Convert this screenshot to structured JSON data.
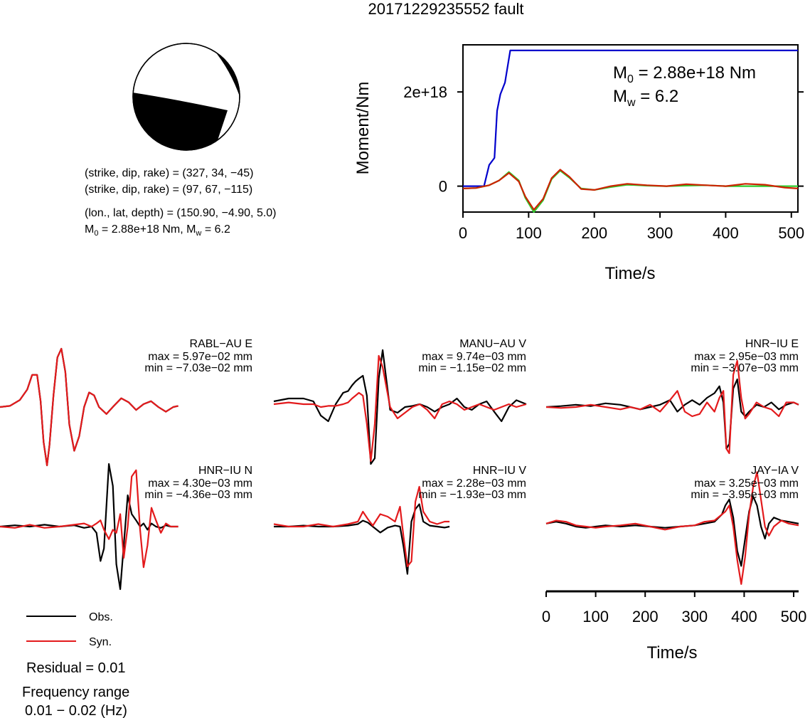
{
  "title": "20171229235552 fault",
  "mechanism": {
    "plane1": "(strike, dip, rake) = (327, 34, −45)",
    "plane2": "(strike, dip, rake) = (97, 67, −115)",
    "location": "(lon., lat, depth) = (150.90, −4.90, 5.0)",
    "moment_prefix": "M",
    "moment_sub": "0",
    "moment_mid": " = 2.88e+18 Nm, M",
    "mw_sub": "w",
    "mw_value": " = 6.2"
  },
  "legend": {
    "obs_label": "Obs.",
    "syn_label": "Syn.",
    "residual": "Residual = 0.01",
    "freq_title": "Frequency range",
    "freq_value": "0.01 − 0.02 (Hz)"
  },
  "colors": {
    "observed": "#000000",
    "synthetic": "#e31a1c",
    "moment": "#0000cc",
    "stf_green": "#2ecc2e",
    "stf_red": "#cc2200"
  },
  "chart_data": [
    {
      "type": "line",
      "name": "moment-rate",
      "xlabel": "Time/s",
      "ylabel": "Moment/Nm",
      "xlim": [
        0,
        510
      ],
      "ylim": [
        -5.5e+17,
        3e+18
      ],
      "xticks": [
        0,
        100,
        200,
        300,
        400,
        500
      ],
      "xtick_labels": [
        "0",
        "100",
        "200",
        "300",
        "400",
        "500"
      ],
      "yticks": [
        0,
        2e+18
      ],
      "ytick_labels": [
        "0",
        "2e+18"
      ],
      "annotation_m0": "M",
      "annotation_m0_sub": "0",
      "annotation_m0_value": " = 2.88e+18 Nm",
      "annotation_mw": "M",
      "annotation_mw_sub": "w",
      "annotation_mw_value": " = 6.2",
      "series": [
        {
          "id": "cumulative",
          "x": [
            0,
            32,
            40,
            48,
            52,
            57,
            64,
            72,
            510
          ],
          "y": [
            0,
            0,
            4.5e+17,
            6e+17,
            1.6e+18,
            1.95e+18,
            2.2e+18,
            2.88e+18,
            2.88e+18
          ]
        },
        {
          "id": "stf-green",
          "x": [
            0,
            20,
            40,
            55,
            70,
            85,
            95,
            108,
            122,
            135,
            148,
            162,
            180,
            200,
            225,
            250,
            280,
            310,
            340,
            370,
            400,
            430,
            460,
            510
          ],
          "y": [
            -5e+16,
            -4e+16,
            2e+16,
            1.2e+17,
            3e+17,
            1.2e+17,
            -2.5e+17,
            -5.5e+17,
            -3e+17,
            1.5e+17,
            3.3e+17,
            1.8e+17,
            -5e+16,
            -8e+16,
            -2e+16,
            3e+16,
            1e+16,
            0.0,
            1e+16,
            2e+16,
            0.0,
            0.0,
            0.0,
            0.0
          ]
        },
        {
          "id": "stf-red",
          "x": [
            0,
            20,
            40,
            55,
            70,
            85,
            95,
            108,
            122,
            135,
            148,
            162,
            180,
            200,
            225,
            250,
            280,
            310,
            340,
            370,
            400,
            430,
            460,
            490,
            510
          ],
          "y": [
            -5e+16,
            -4e+16,
            2e+16,
            1.2e+17,
            2.8e+17,
            1e+17,
            -2.2e+17,
            -5e+17,
            -2.7e+17,
            1.7e+17,
            3.5e+17,
            2e+17,
            -6e+16,
            -8e+16,
            0.0,
            5e+16,
            2e+16,
            0.0,
            4e+16,
            2e+16,
            0.0,
            5e+16,
            3e+16,
            -3e+16,
            -5e+16
          ]
        }
      ]
    },
    {
      "type": "line",
      "name": "waveforms",
      "xlabel": "Time/s",
      "xlim": [
        0,
        510
      ],
      "xticks": [
        0,
        100,
        200,
        300,
        400,
        500
      ],
      "xtick_labels": [
        "0",
        "100",
        "200",
        "300",
        "400",
        "500"
      ],
      "series_names": [
        "Obs.",
        "Syn."
      ],
      "traces": [
        {
          "station": "RABL−AU E",
          "max_label": "max = 5.97e−02 mm",
          "min_label": "min = −7.03e−02 mm",
          "x": [
            0,
            20,
            40,
            55,
            65,
            75,
            82,
            88,
            95,
            100,
            108,
            116,
            124,
            132,
            140,
            150,
            160,
            170,
            180,
            190,
            200,
            215,
            230,
            245,
            260,
            275,
            290,
            305,
            320,
            335,
            350,
            360
          ],
          "obs": [
            0,
            0.02,
            0.12,
            0.3,
            0.55,
            0.55,
            0.1,
            -0.6,
            -1.0,
            -0.65,
            0.2,
            0.85,
            1.0,
            0.6,
            -0.3,
            -0.75,
            -0.5,
            0.0,
            0.25,
            0.2,
            0.0,
            -0.12,
            0.02,
            0.15,
            0.08,
            -0.05,
            0.05,
            0.1,
            0.0,
            -0.08,
            0.0,
            0.02
          ],
          "syn": [
            0,
            0.02,
            0.12,
            0.3,
            0.55,
            0.55,
            0.1,
            -0.6,
            -1.0,
            -0.65,
            0.2,
            0.85,
            1.0,
            0.6,
            -0.3,
            -0.75,
            -0.5,
            0.0,
            0.25,
            0.2,
            0.0,
            -0.12,
            0.02,
            0.15,
            0.08,
            -0.05,
            0.05,
            0.1,
            0.0,
            -0.08,
            0.0,
            0.02
          ]
        },
        {
          "station": "MANU−AU V",
          "max_label": "max = 9.74e−03 mm",
          "min_label": "min = −1.15e−02 mm",
          "x": [
            0,
            30,
            60,
            80,
            95,
            110,
            125,
            140,
            150,
            158,
            165,
            172,
            180,
            188,
            196,
            204,
            212,
            220,
            235,
            250,
            265,
            280,
            295,
            310,
            325,
            340,
            355,
            370,
            385,
            400,
            415,
            430,
            445,
            460,
            475,
            490,
            510
          ],
          "obs": [
            0.1,
            0.15,
            0.15,
            0.1,
            -0.15,
            -0.25,
            0.05,
            0.25,
            0.28,
            0.38,
            0.45,
            0.5,
            0.55,
            0.2,
            -1.0,
            -0.9,
            0.5,
            1.0,
            -0.05,
            -0.1,
            0.0,
            0.02,
            0.05,
            0.0,
            -0.08,
            0.0,
            0.05,
            0.15,
            0.0,
            -0.05,
            0.05,
            0.1,
            -0.08,
            -0.25,
            0.0,
            0.12,
            0.05
          ],
          "syn": [
            0.05,
            0.08,
            0.05,
            0.05,
            0.0,
            0.02,
            0.02,
            0.05,
            0.08,
            0.15,
            0.2,
            0.25,
            0.2,
            -0.3,
            -0.95,
            -0.3,
            0.9,
            0.7,
            0.0,
            -0.2,
            -0.1,
            0.0,
            0.05,
            -0.05,
            -0.2,
            0.05,
            0.1,
            0.05,
            -0.05,
            0.0,
            0.05,
            0.0,
            -0.05,
            0.0,
            0.05,
            0.0,
            0.05
          ]
        },
        {
          "station": "HNR−IU E",
          "max_label": "max = 2.95e−03 mm",
          "min_label": "min = −3.07e−03 mm",
          "x": [
            0,
            30,
            60,
            90,
            120,
            150,
            170,
            190,
            210,
            230,
            250,
            265,
            280,
            295,
            310,
            325,
            340,
            350,
            358,
            364,
            370,
            378,
            386,
            394,
            402,
            410,
            425,
            440,
            455,
            470,
            485,
            500,
            510
          ],
          "obs": [
            0,
            0.02,
            0.05,
            0.02,
            0.08,
            0.05,
            0.0,
            -0.05,
            0.0,
            0.05,
            0.15,
            -0.1,
            0.05,
            0.15,
            0.05,
            0.2,
            0.3,
            0.45,
            0.1,
            -0.9,
            -0.8,
            0.4,
            0.6,
            -0.1,
            -0.2,
            -0.1,
            0.05,
            0.0,
            0.1,
            -0.05,
            0.05,
            0.1,
            0.05
          ],
          "syn": [
            0,
            -0.02,
            0.0,
            0.05,
            0.0,
            -0.05,
            0.0,
            -0.05,
            0.05,
            -0.1,
            0.15,
            0.35,
            -0.1,
            -0.2,
            -0.15,
            0.1,
            -0.1,
            0.2,
            0.35,
            -0.9,
            -1.0,
            0.7,
            1.0,
            0.2,
            -0.25,
            -0.15,
            0.1,
            0.0,
            -0.05,
            -0.2,
            0.1,
            0.1,
            0.05
          ]
        },
        {
          "station": "HNR−IU N",
          "max_label": "max = 4.30e−03 mm",
          "min_label": "min = −4.36e−03 mm",
          "x": [
            0,
            30,
            60,
            90,
            120,
            150,
            170,
            185,
            195,
            203,
            210,
            220,
            228,
            235,
            243,
            250,
            258,
            266,
            275,
            283,
            290,
            298,
            306,
            315,
            325,
            335,
            345,
            360
          ],
          "obs": [
            0,
            0.02,
            0.0,
            0.03,
            0.0,
            0.02,
            -0.02,
            0.0,
            -0.1,
            -0.55,
            -0.35,
            1.0,
            0.65,
            -0.6,
            -1.0,
            -0.3,
            0.5,
            0.2,
            0.1,
            0.0,
            0.05,
            -0.05,
            0.05,
            0.0,
            -0.02,
            0.02,
            0.0,
            0.0
          ],
          "syn": [
            0,
            -0.02,
            0.03,
            -0.02,
            0.0,
            0.03,
            0.05,
            0.0,
            0.05,
            0.1,
            -0.05,
            -0.2,
            -0.05,
            -0.1,
            0.2,
            -0.5,
            0.0,
            0.8,
            0.9,
            -0.05,
            -0.65,
            -0.3,
            0.3,
            0.1,
            -0.1,
            0.05,
            0.0,
            0.0
          ],
          "clip": true
        },
        {
          "station": "HNR−IU V",
          "max_label": "max = 2.28e−03 mm",
          "min_label": "min = −1.93e−03 mm",
          "x": [
            0,
            30,
            60,
            90,
            120,
            150,
            170,
            180,
            190,
            200,
            215,
            230,
            245,
            255,
            262,
            270,
            278,
            286,
            294,
            302,
            315,
            330,
            345,
            355
          ],
          "obs": [
            0,
            0.0,
            0.02,
            0.0,
            0.0,
            0.02,
            0.05,
            0.12,
            0.08,
            0.0,
            -0.12,
            -0.02,
            0.02,
            0.0,
            -0.4,
            -0.95,
            0.1,
            0.35,
            0.45,
            0.1,
            0.02,
            0.0,
            -0.02,
            0.0
          ],
          "syn": [
            0.05,
            0.0,
            0.0,
            0.05,
            0.0,
            0.05,
            0.1,
            0.3,
            0.15,
            0.02,
            0.25,
            0.2,
            0.1,
            0.4,
            -0.2,
            -0.8,
            -0.7,
            0.5,
            0.8,
            0.3,
            0.1,
            0.05,
            0.1,
            0.1
          ],
          "clip": true
        },
        {
          "station": "JAY−IA V",
          "max_label": "max = 3.25e−03 mm",
          "min_label": "min = −3.95e−03 mm",
          "x": [
            0,
            20,
            40,
            60,
            80,
            100,
            120,
            150,
            180,
            210,
            240,
            270,
            300,
            320,
            340,
            355,
            362,
            370,
            378,
            386,
            394,
            402,
            410,
            418,
            426,
            434,
            442,
            450,
            460,
            475,
            490,
            510
          ],
          "obs": [
            0.05,
            0.08,
            0.05,
            0.0,
            -0.02,
            0.0,
            0.02,
            0.0,
            0.02,
            0.0,
            -0.02,
            0.0,
            0.02,
            0.05,
            0.08,
            0.2,
            0.35,
            0.45,
            0.15,
            -0.4,
            -0.65,
            -0.2,
            0.25,
            0.5,
            0.35,
            0.0,
            -0.2,
            0.05,
            0.15,
            0.1,
            0.08,
            0.05
          ],
          "syn": [
            0.05,
            0.1,
            0.08,
            0.02,
            0.0,
            -0.02,
            0.0,
            0.02,
            0.05,
            0.0,
            -0.05,
            0.0,
            0.02,
            0.08,
            0.1,
            0.2,
            0.25,
            0.35,
            0.0,
            -0.55,
            -0.95,
            -0.5,
            0.2,
            0.65,
            0.9,
            0.45,
            0.0,
            -0.15,
            0.0,
            0.1,
            0.05,
            0.02
          ],
          "clip": true
        }
      ]
    }
  ]
}
